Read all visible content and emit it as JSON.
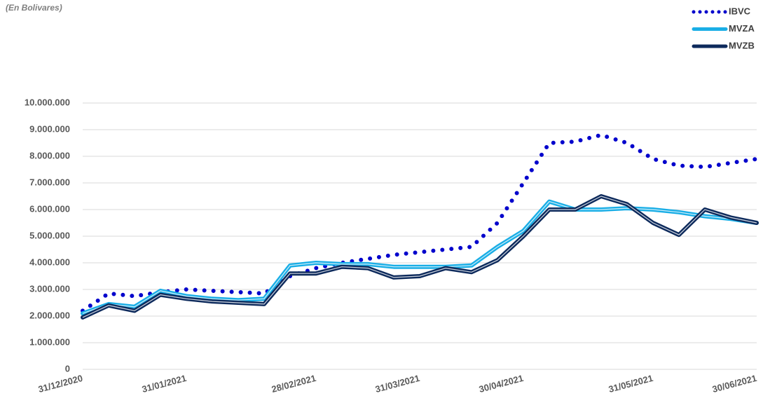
{
  "chart_data": {
    "type": "line",
    "subtitle": "(En Bolivares)",
    "categories": [
      "31/12/2020",
      null,
      null,
      null,
      "31/01/2021",
      null,
      null,
      null,
      null,
      "28/02/2021",
      null,
      null,
      null,
      "31/03/2021",
      null,
      null,
      null,
      "30/04/2021",
      null,
      null,
      null,
      null,
      "31/05/2021",
      null,
      null,
      null,
      "30/06/2021"
    ],
    "series": [
      {
        "name": "IBVC",
        "color": "#0000cc",
        "style": "dotted",
        "values": [
          2200000,
          2850000,
          2750000,
          2900000,
          3000000,
          2950000,
          2900000,
          2850000,
          3500000,
          3800000,
          4000000,
          4150000,
          4300000,
          4400000,
          4500000,
          4600000,
          5500000,
          7000000,
          8500000,
          8550000,
          8800000,
          8500000,
          7900000,
          7650000,
          7600000,
          7750000,
          7900000
        ]
      },
      {
        "name": "MVZA",
        "color": "#1aaee6",
        "style": "solid",
        "values": [
          2100000,
          2450000,
          2350000,
          2950000,
          2750000,
          2650000,
          2600000,
          2650000,
          3900000,
          4000000,
          3950000,
          3950000,
          3850000,
          3850000,
          3850000,
          3900000,
          4600000,
          5200000,
          6300000,
          6000000,
          6000000,
          6050000,
          6000000,
          5900000,
          5750000,
          5650000,
          5500000
        ]
      },
      {
        "name": "MVZB",
        "color": "#0d2a5c",
        "style": "solid",
        "values": [
          1950000,
          2400000,
          2200000,
          2800000,
          2650000,
          2550000,
          2500000,
          2450000,
          3600000,
          3600000,
          3850000,
          3800000,
          3450000,
          3500000,
          3800000,
          3650000,
          4100000,
          5000000,
          6000000,
          6000000,
          6500000,
          6200000,
          5500000,
          5050000,
          6000000,
          5700000,
          5500000
        ]
      }
    ],
    "ylim": [
      0,
      10000000
    ],
    "yticks": [
      0,
      {
        "value": 1000000,
        "label": "1.000.000"
      },
      {
        "value": 2000000,
        "label": "2.000.000"
      },
      {
        "value": 3000000,
        "label": "3.000.000"
      },
      {
        "value": 4000000,
        "label": "4.000.000"
      },
      {
        "value": 5000000,
        "label": "5.000.000"
      },
      {
        "value": 6000000,
        "label": "6.000.000"
      },
      {
        "value": 7000000,
        "label": "7.000.000"
      },
      {
        "value": 8000000,
        "label": "8.000.000"
      },
      {
        "value": 9000000,
        "label": "9.000.000"
      },
      {
        "value": 10000000,
        "label": "10.000.000"
      }
    ],
    "grid": true,
    "legend": "top-right"
  }
}
